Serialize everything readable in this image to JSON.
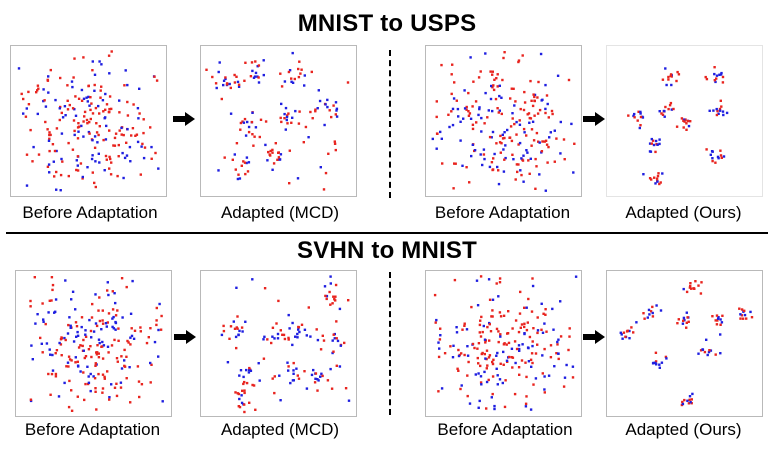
{
  "sections": {
    "top": {
      "title": "MNIST to USPS",
      "captions": [
        "Before Adaptation",
        "Adapted (MCD)",
        "Before Adaptation",
        "Adapted (Ours)"
      ]
    },
    "bottom": {
      "title": "SVHN to MNIST",
      "captions": [
        "Before Adaptation",
        "Adapted (MCD)",
        "Before Adaptation",
        "Adapted (Ours)"
      ]
    }
  },
  "colors": {
    "source": "#e8241f",
    "target": "#1f1fe0",
    "panel_border": "#b9b9b9"
  },
  "icons": {
    "arrow": "right-arrow-icon"
  }
}
